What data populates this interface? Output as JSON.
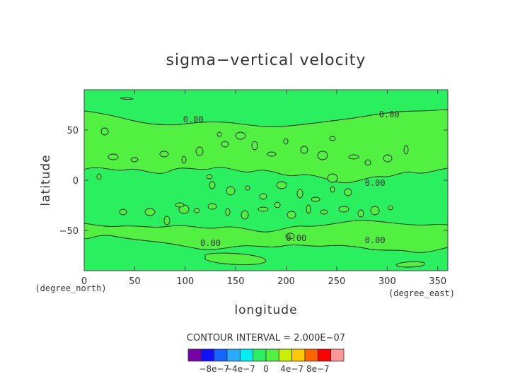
{
  "chart_data": {
    "type": "contour",
    "title": "sigma−vertical velocity",
    "xlabel": "longitude",
    "ylabel": "latitude",
    "x_unit_label": "(degree_east)",
    "y_unit_label": "(degree_north)",
    "xlim": [
      0,
      360
    ],
    "ylim": [
      -90,
      90
    ],
    "x_ticks": [
      0,
      50,
      100,
      150,
      200,
      250,
      300,
      350
    ],
    "x_tick_labels": [
      "0",
      "50",
      "100",
      "150",
      "200",
      "250",
      "300",
      "350"
    ],
    "y_ticks": [
      -50,
      0,
      50
    ],
    "y_tick_labels": [
      "−50",
      "0",
      "50"
    ],
    "contour_interval_text": "CONTOUR INTERVAL = 2.000E−07",
    "contour_labels": [
      {
        "text": "0.00",
        "lon": 108,
        "lat": 61
      },
      {
        "text": "0.00",
        "lon": 302,
        "lat": 66
      },
      {
        "text": "0.00",
        "lon": 288,
        "lat": -2
      },
      {
        "text": "0.00",
        "lon": 125,
        "lat": -62
      },
      {
        "text": "0.00",
        "lon": 210,
        "lat": -57
      },
      {
        "text": "0.00",
        "lon": 288,
        "lat": -59
      }
    ],
    "colorbar": {
      "colors": [
        "#7a00a8",
        "#1010ff",
        "#1464ff",
        "#28aaff",
        "#00f0f0",
        "#2af060",
        "#52f040",
        "#c8f000",
        "#ffc800",
        "#ff6400",
        "#ff0000",
        "#ff9696"
      ],
      "tick_labels": [
        "−8e−7",
        "−4e−7",
        "0",
        "4e−7",
        "8e−7"
      ]
    },
    "fill_colors": {
      "zero_band": "#52f040",
      "negative_band": "#2af060"
    },
    "grid": false
  }
}
